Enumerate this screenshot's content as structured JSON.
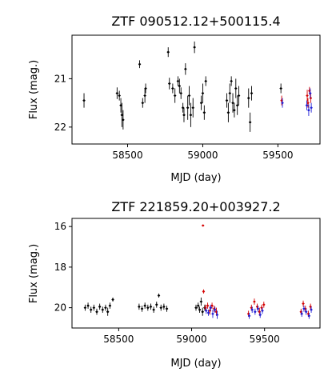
{
  "chart_data": [
    {
      "type": "scatter",
      "title": "ZTF 090512.12+500115.4",
      "xlabel": "MJD (day)",
      "ylabel": "Flux (mag.)",
      "xlim": [
        58130,
        59780
      ],
      "ylim": [
        22.35,
        20.1
      ],
      "y_inverted": true,
      "grid": false,
      "xticks": [
        58500,
        59000,
        59500
      ],
      "yticks": [
        21,
        22
      ],
      "series": [
        {
          "color": "#000000",
          "points": [
            [
              58210,
              21.45,
              0.15
            ],
            [
              58430,
              21.3,
              0.12
            ],
            [
              58445,
              21.35,
              0.1
            ],
            [
              58455,
              21.55,
              0.15
            ],
            [
              58462,
              21.75,
              0.25
            ],
            [
              58470,
              21.85,
              0.2
            ],
            [
              58580,
              20.7,
              0.08
            ],
            [
              58600,
              21.5,
              0.1
            ],
            [
              58615,
              21.35,
              0.15
            ],
            [
              58620,
              21.2,
              0.1
            ],
            [
              58770,
              20.45,
              0.1
            ],
            [
              58778,
              21.1,
              0.12
            ],
            [
              58800,
              21.2,
              0.1
            ],
            [
              58815,
              21.35,
              0.15
            ],
            [
              58835,
              21.05,
              0.1
            ],
            [
              58845,
              21.15,
              0.15
            ],
            [
              58855,
              21.3,
              0.12
            ],
            [
              58868,
              21.6,
              0.1
            ],
            [
              58875,
              21.75,
              0.15
            ],
            [
              58885,
              20.8,
              0.12
            ],
            [
              58900,
              21.6,
              0.25
            ],
            [
              58910,
              21.35,
              0.2
            ],
            [
              58920,
              21.75,
              0.25
            ],
            [
              58935,
              21.6,
              0.2
            ],
            [
              58945,
              20.35,
              0.12
            ],
            [
              58990,
              21.5,
              0.15
            ],
            [
              59000,
              21.3,
              0.2
            ],
            [
              59010,
              21.7,
              0.15
            ],
            [
              59020,
              21.05,
              0.1
            ],
            [
              59160,
              21.45,
              0.15
            ],
            [
              59170,
              21.7,
              0.2
            ],
            [
              59180,
              21.3,
              0.2
            ],
            [
              59190,
              21.05,
              0.1
            ],
            [
              59200,
              21.5,
              0.2
            ],
            [
              59210,
              21.65,
              0.15
            ],
            [
              59220,
              21.2,
              0.2
            ],
            [
              59230,
              21.55,
              0.2
            ],
            [
              59240,
              21.35,
              0.2
            ],
            [
              59305,
              21.4,
              0.2
            ],
            [
              59315,
              21.9,
              0.2
            ],
            [
              59325,
              21.3,
              0.15
            ],
            [
              59520,
              21.2,
              0.1
            ]
          ]
        },
        {
          "color": "#d40000",
          "points": [
            [
              59525,
              21.45,
              0.1
            ],
            [
              59695,
              21.35,
              0.12
            ],
            [
              59700,
              21.5,
              0.1
            ],
            [
              59710,
              21.25,
              0.08
            ],
            [
              59718,
              21.4,
              0.1
            ]
          ]
        },
        {
          "color": "#1f1fd6",
          "points": [
            [
              59530,
              21.5,
              0.1
            ],
            [
              59692,
              21.55,
              0.1
            ],
            [
              59705,
              21.65,
              0.12
            ],
            [
              59715,
              21.3,
              0.1
            ],
            [
              59722,
              21.6,
              0.1
            ]
          ]
        }
      ]
    },
    {
      "type": "scatter",
      "title": "ZTF 221859.20+003927.2",
      "xlabel": "MJD (day)",
      "ylabel": "Flux (mag.)",
      "xlim": [
        58180,
        59880
      ],
      "ylim": [
        21.0,
        15.6
      ],
      "y_inverted": true,
      "grid": false,
      "xticks": [
        58500,
        59000,
        59500
      ],
      "yticks": [
        16,
        18,
        20
      ],
      "series": [
        {
          "color": "#000000",
          "points": [
            [
              58270,
              20.0,
              0.15
            ],
            [
              58290,
              19.9,
              0.15
            ],
            [
              58310,
              20.1,
              0.15
            ],
            [
              58330,
              20.0,
              0.15
            ],
            [
              58350,
              20.2,
              0.15
            ],
            [
              58370,
              19.95,
              0.15
            ],
            [
              58390,
              20.1,
              0.15
            ],
            [
              58410,
              20.0,
              0.15
            ],
            [
              58425,
              20.2,
              0.2
            ],
            [
              58440,
              19.9,
              0.15
            ],
            [
              58460,
              19.6,
              0.1
            ],
            [
              58640,
              19.95,
              0.15
            ],
            [
              58660,
              20.05,
              0.15
            ],
            [
              58680,
              19.9,
              0.15
            ],
            [
              58700,
              20.0,
              0.15
            ],
            [
              58720,
              19.95,
              0.15
            ],
            [
              58740,
              20.1,
              0.15
            ],
            [
              58760,
              19.85,
              0.15
            ],
            [
              58775,
              19.4,
              0.1
            ],
            [
              58790,
              20.0,
              0.15
            ],
            [
              58810,
              19.95,
              0.15
            ],
            [
              58830,
              20.05,
              0.15
            ],
            [
              59030,
              20.0,
              0.15
            ],
            [
              59045,
              19.9,
              0.15
            ],
            [
              59055,
              20.1,
              0.15
            ],
            [
              59065,
              19.7,
              0.2
            ],
            [
              59075,
              20.2,
              0.2
            ],
            [
              59090,
              20.0,
              0.15
            ]
          ]
        },
        {
          "color": "#d40000",
          "points": [
            [
              59078,
              15.95,
              0.05
            ],
            [
              59082,
              19.2,
              0.1
            ],
            [
              59095,
              20.0,
              0.15
            ],
            [
              59110,
              19.9,
              0.15
            ],
            [
              59125,
              20.15,
              0.2
            ],
            [
              59140,
              19.9,
              0.15
            ],
            [
              59155,
              20.05,
              0.15
            ],
            [
              59170,
              20.2,
              0.2
            ],
            [
              59390,
              20.3,
              0.15
            ],
            [
              59410,
              20.0,
              0.15
            ],
            [
              59430,
              19.7,
              0.15
            ],
            [
              59450,
              19.95,
              0.15
            ],
            [
              59465,
              20.2,
              0.2
            ],
            [
              59480,
              20.0,
              0.15
            ],
            [
              59495,
              19.85,
              0.15
            ],
            [
              59750,
              20.2,
              0.15
            ],
            [
              59765,
              19.8,
              0.15
            ],
            [
              59780,
              20.05,
              0.15
            ],
            [
              59800,
              20.3,
              0.15
            ],
            [
              59815,
              19.95,
              0.15
            ]
          ]
        },
        {
          "color": "#1f1fd6",
          "points": [
            [
              59100,
              20.15,
              0.15
            ],
            [
              59115,
              20.25,
              0.15
            ],
            [
              59130,
              20.0,
              0.15
            ],
            [
              59145,
              20.3,
              0.2
            ],
            [
              59160,
              20.1,
              0.15
            ],
            [
              59175,
              20.35,
              0.2
            ],
            [
              59395,
              20.4,
              0.15
            ],
            [
              59415,
              20.1,
              0.15
            ],
            [
              59435,
              20.2,
              0.15
            ],
            [
              59455,
              20.05,
              0.15
            ],
            [
              59470,
              20.35,
              0.15
            ],
            [
              59485,
              20.15,
              0.15
            ],
            [
              59755,
              20.3,
              0.15
            ],
            [
              59770,
              20.05,
              0.15
            ],
            [
              59785,
              20.2,
              0.15
            ],
            [
              59805,
              20.4,
              0.15
            ],
            [
              59820,
              20.1,
              0.15
            ]
          ]
        }
      ]
    }
  ]
}
